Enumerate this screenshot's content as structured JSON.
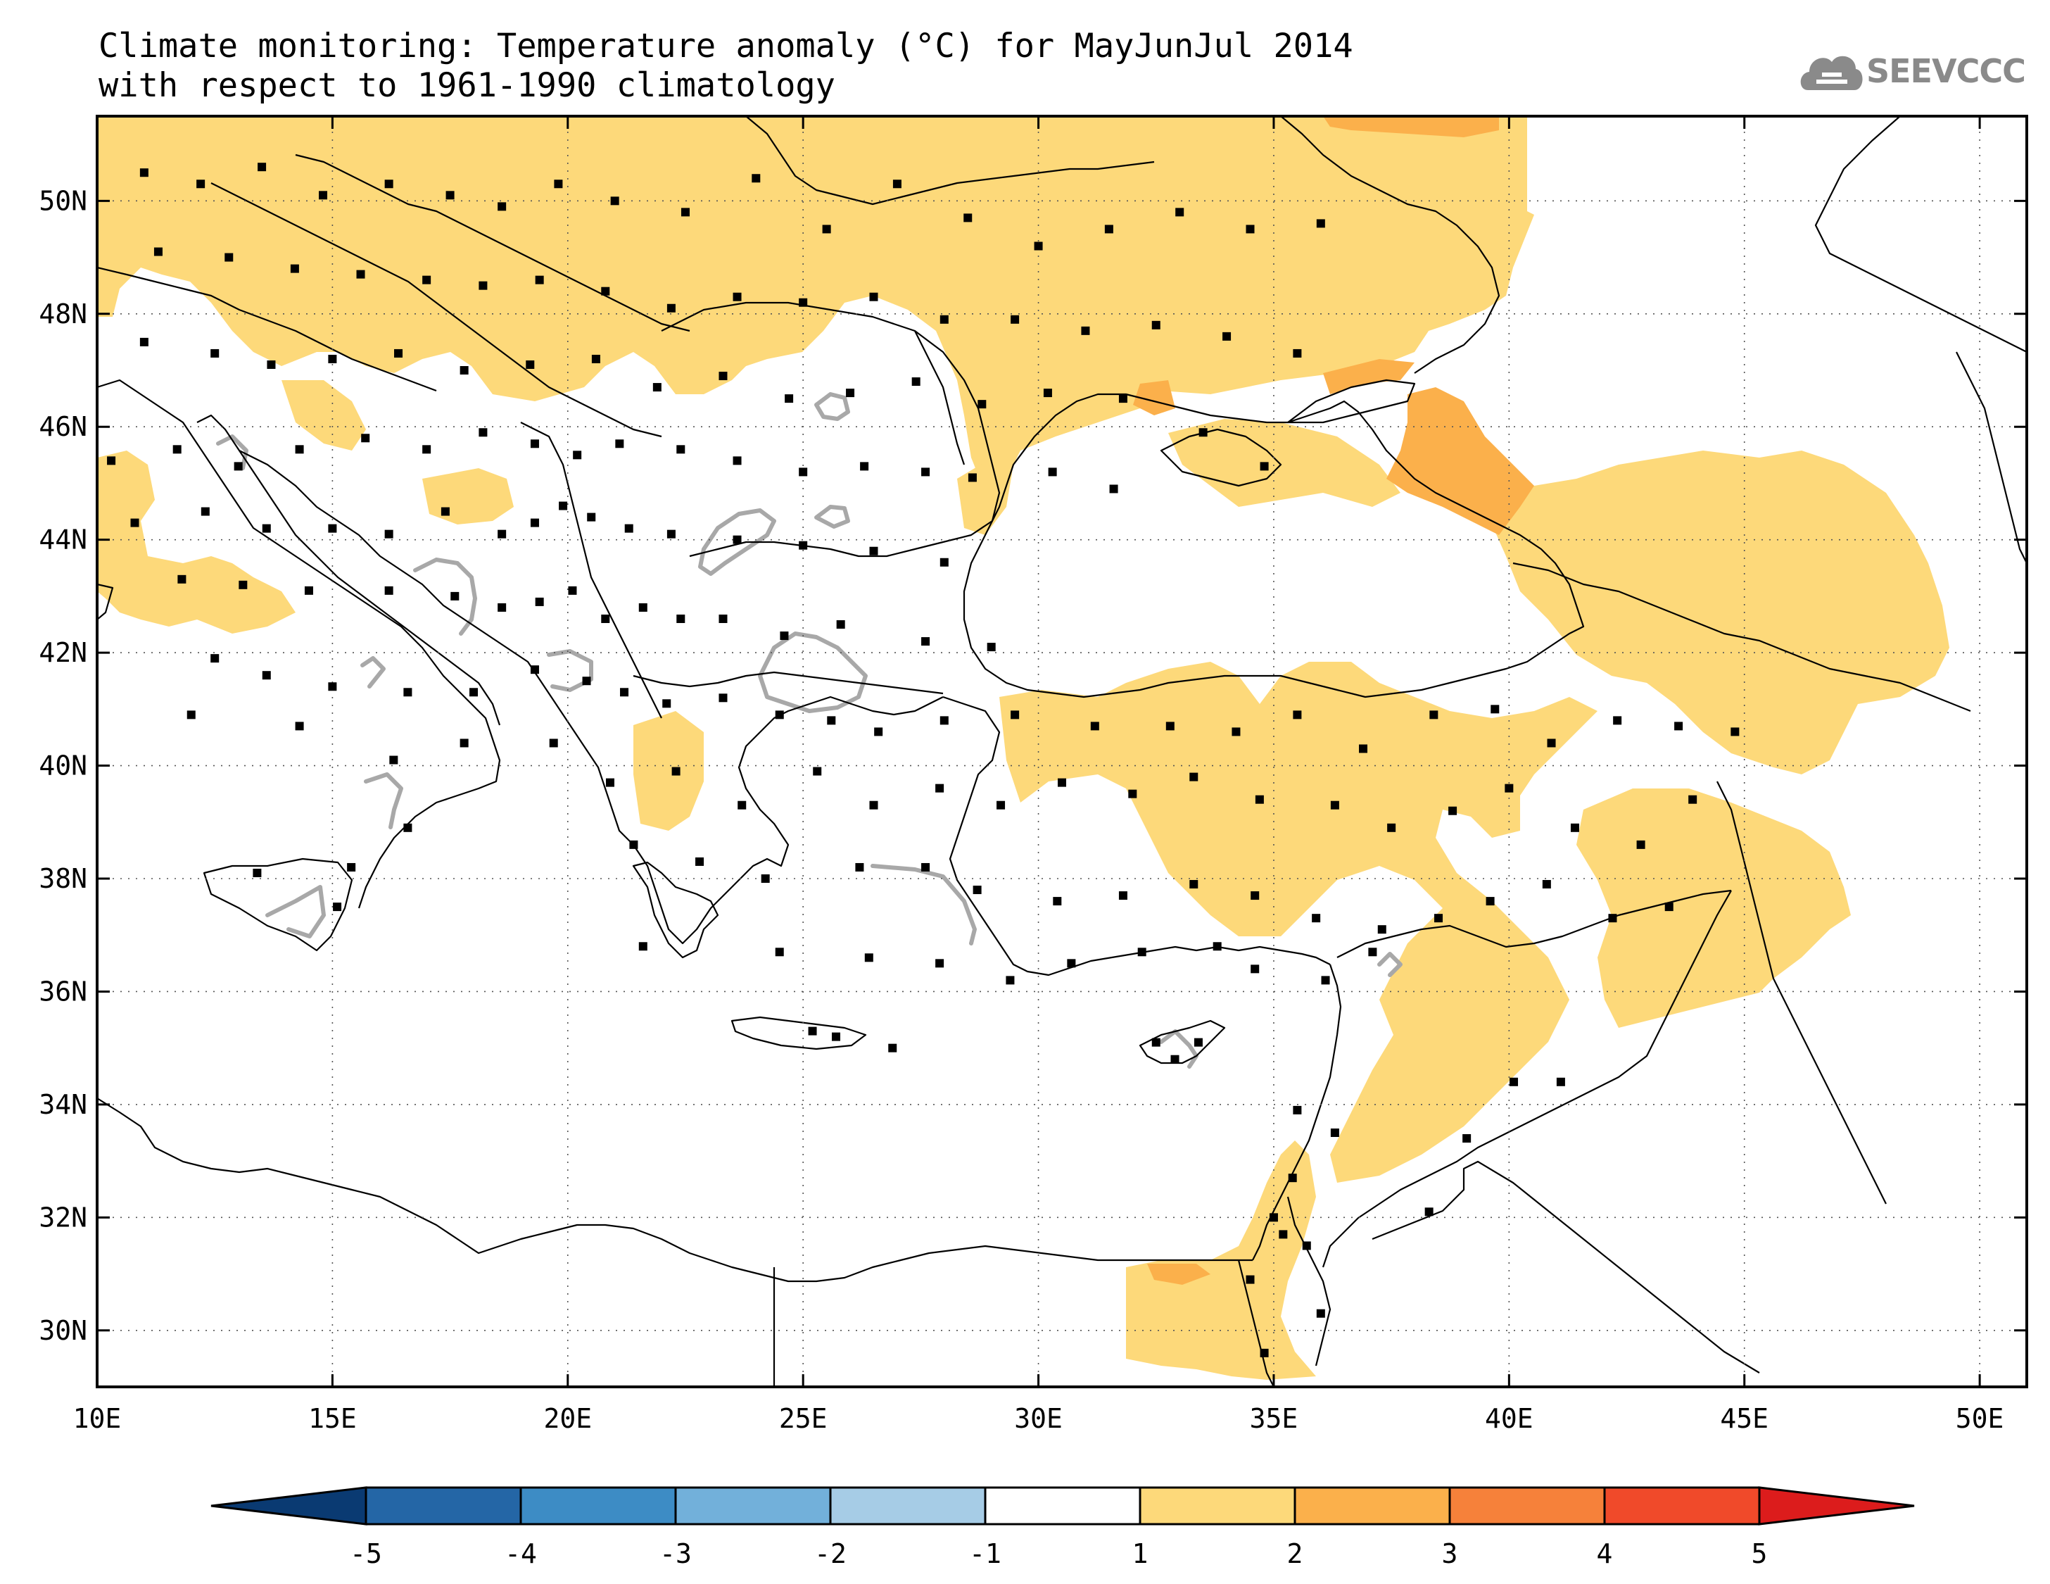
{
  "title": {
    "line1": "Climate monitoring: Temperature anomaly (°C) for MayJunJul 2014",
    "line2": "with respect to 1961-1990 climatology"
  },
  "logo": {
    "text": "SEEVCCC",
    "icon": "cloud-icon"
  },
  "map": {
    "lon_range": [
      10,
      51
    ],
    "lat_range": [
      29,
      51.5
    ],
    "lon_ticks": [
      {
        "value": 10,
        "label": "10E"
      },
      {
        "value": 15,
        "label": "15E"
      },
      {
        "value": 20,
        "label": "20E"
      },
      {
        "value": 25,
        "label": "25E"
      },
      {
        "value": 30,
        "label": "30E"
      },
      {
        "value": 35,
        "label": "35E"
      },
      {
        "value": 40,
        "label": "40E"
      },
      {
        "value": 45,
        "label": "45E"
      },
      {
        "value": 50,
        "label": "50E"
      }
    ],
    "lat_ticks": [
      {
        "value": 50,
        "label": "50N"
      },
      {
        "value": 48,
        "label": "48N"
      },
      {
        "value": 46,
        "label": "46N"
      },
      {
        "value": 44,
        "label": "44N"
      },
      {
        "value": 42,
        "label": "42N"
      },
      {
        "value": 40,
        "label": "40N"
      },
      {
        "value": 38,
        "label": "38N"
      },
      {
        "value": 36,
        "label": "36N"
      },
      {
        "value": 34,
        "label": "34N"
      },
      {
        "value": 32,
        "label": "32N"
      },
      {
        "value": 30,
        "label": "30N"
      }
    ],
    "gridlines": "dotted",
    "land_outline_color": "#000000",
    "contour_color": "#a8a8a8",
    "station_marker": "square",
    "anomaly_1_2_color": "#fdd97a",
    "anomaly_2_3_color": "#fbb04b"
  },
  "colorbar": {
    "labels": [
      "-5",
      "-4",
      "-3",
      "-2",
      "-1",
      "1",
      "2",
      "3",
      "4",
      "5"
    ],
    "colors": [
      "#0a3a72",
      "#2466a6",
      "#3d8cc5",
      "#72b0da",
      "#a6cce6",
      "#ffffff",
      "#fdd97a",
      "#fbb04b",
      "#f6813a",
      "#f04a2a",
      "#dc1c1c"
    ]
  }
}
